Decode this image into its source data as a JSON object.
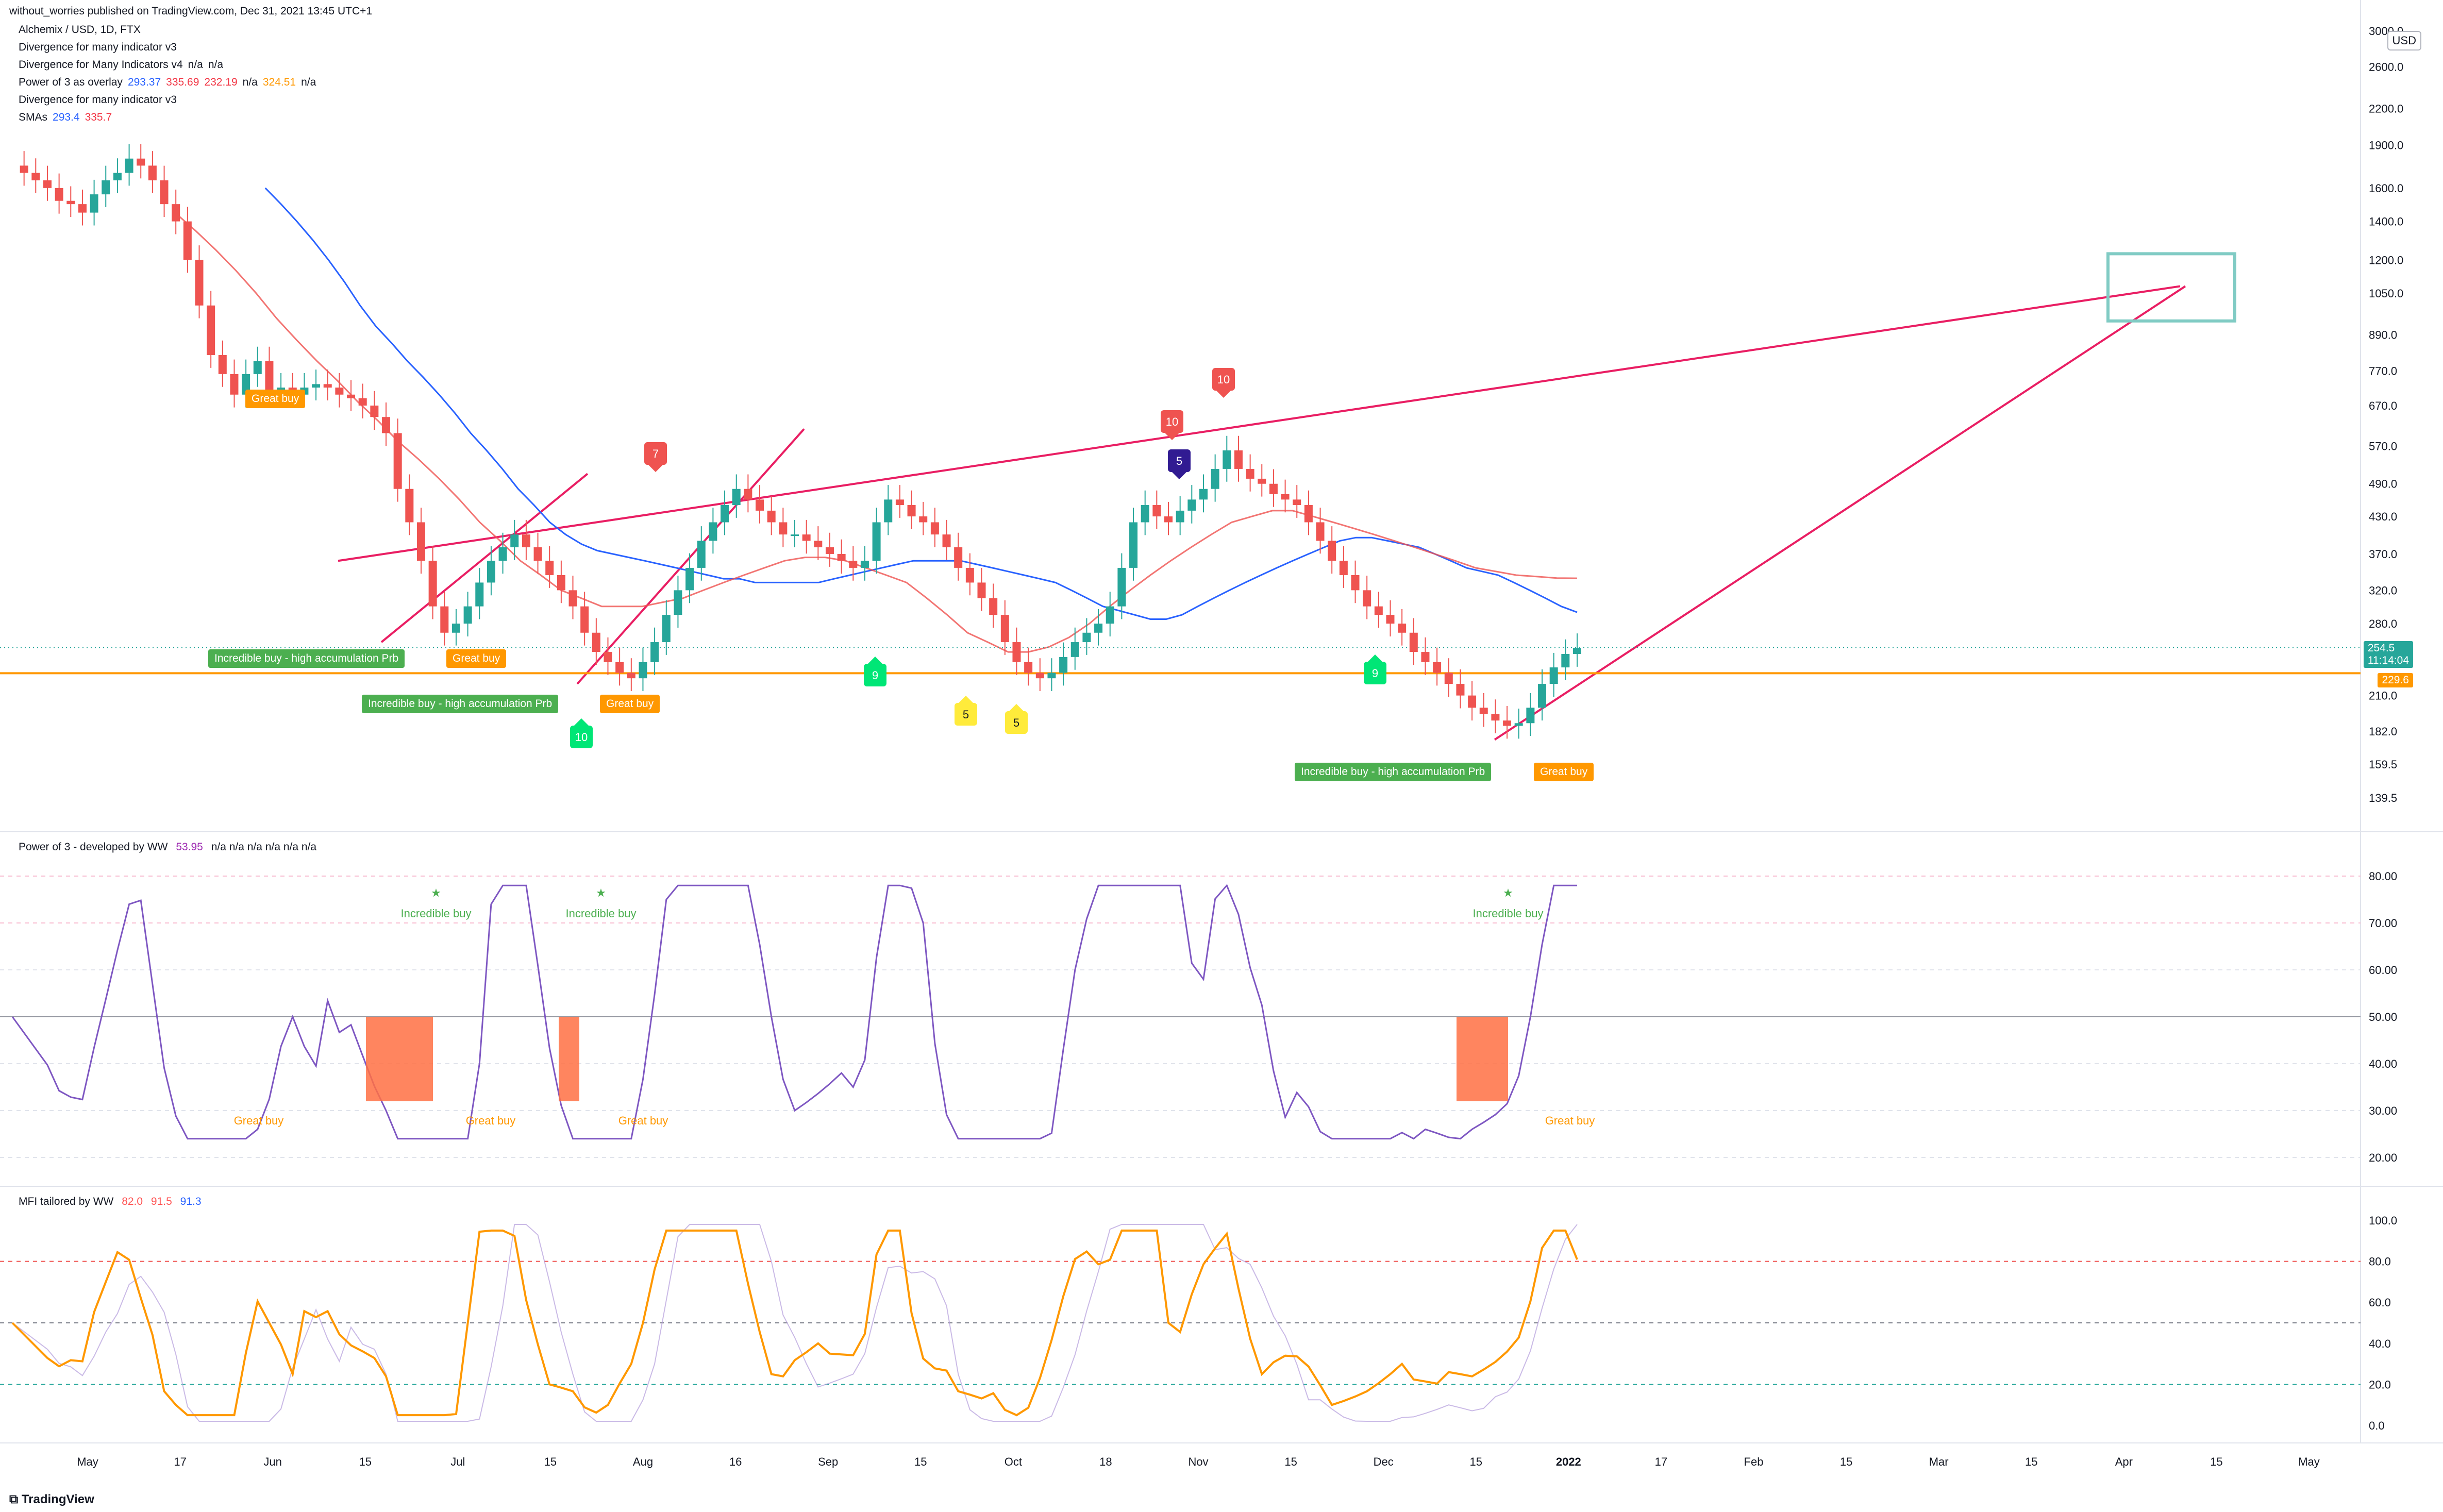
{
  "header": {
    "credit": "without_worries published on TradingView.com, Dec 31, 2021 13:45 UTC+1",
    "symbol": "Alchemix / USD, 1D, FTX",
    "indicators": [
      {
        "name": "Divergence for many indicator v3",
        "values": []
      },
      {
        "name": "Divergence for Many Indicators v4",
        "values": [
          "n/a",
          "n/a"
        ]
      },
      {
        "name": "Power of 3 as overlay",
        "values": [
          "293.37",
          "335.69",
          "232.19",
          "n/a",
          "324.51",
          "n/a"
        ]
      },
      {
        "name": "Divergence for many indicator v3",
        "values": []
      },
      {
        "name": "SMAs",
        "values": [
          "293.4",
          "335.7"
        ]
      }
    ],
    "value_colors": [
      "#2962ff",
      "#f23645",
      "#f23645",
      "#131722",
      "#ff9800",
      "#131722"
    ]
  },
  "currency_box": "USD",
  "price_axis": {
    "ticks": [
      "3000.0",
      "2600.0",
      "2200.0",
      "1900.0",
      "1600.0",
      "1400.0",
      "1200.0",
      "1050.0",
      "890.0",
      "770.0",
      "670.0",
      "570.0",
      "490.0",
      "430.0",
      "370.0",
      "320.0",
      "280.0",
      "210.0",
      "182.0",
      "159.5",
      "139.5"
    ],
    "tick_values": [
      3000,
      2600,
      2200,
      1900,
      1600,
      1400,
      1200,
      1050,
      890,
      770,
      670,
      570,
      490,
      430,
      370,
      320,
      280,
      210,
      182,
      159.5,
      139.5
    ],
    "last_price": "254.5",
    "countdown": "11:14:04",
    "level_price": "229.6"
  },
  "time_axis": {
    "labels": [
      "May",
      "17",
      "Jun",
      "15",
      "Jul",
      "15",
      "Aug",
      "16",
      "Sep",
      "15",
      "Oct",
      "18",
      "Nov",
      "15",
      "Dec",
      "15",
      "2022",
      "17",
      "Feb",
      "15",
      "Mar",
      "15",
      "Apr",
      "15",
      "May"
    ]
  },
  "markers": {
    "sell": [
      "7",
      "10",
      "10",
      "5"
    ],
    "buy": [
      "10",
      "9",
      "5",
      "5",
      "9"
    ]
  },
  "signals": {
    "incredible": "Incredible buy - high accumulation Prb",
    "great": "Great buy"
  },
  "pane2": {
    "title": "Power of 3 - developed by WW",
    "value": "53.95",
    "na": [
      "n/a",
      "n/a",
      "n/a",
      "n/a",
      "n/a",
      "n/a"
    ],
    "ticks": [
      "80.00",
      "70.00",
      "60.00",
      "50.00",
      "40.00",
      "30.00",
      "20.00"
    ],
    "tick_values": [
      80,
      70,
      60,
      50,
      40,
      30,
      20
    ],
    "incredible_label": "Incredible buy",
    "great_label": "Great buy"
  },
  "pane3": {
    "title": "MFI tailored by WW",
    "values": [
      "82.0",
      "91.5",
      "91.3"
    ],
    "value_colors": [
      "#ff5252",
      "#ff5252",
      "#2962ff"
    ],
    "ticks": [
      "100.0",
      "80.0",
      "60.0",
      "40.0",
      "20.0",
      "0.0"
    ],
    "tick_values": [
      100,
      80,
      60,
      40,
      20,
      0
    ]
  },
  "footer": "TradingView",
  "colors": {
    "bull": "#26a69a",
    "bear": "#ef5350",
    "trend": "#e91e63",
    "sma_fast": "#2962ff",
    "sma_slow": "#ef5350",
    "orange": "#ff9800",
    "green_badge": "#4caf50",
    "target_box": "#80cbc4"
  },
  "chart_data": {
    "type": "candlestick",
    "title": "Alchemix / USD, 1D, FTX",
    "scale": "log",
    "closes": [
      1750,
      1700,
      1650,
      1600,
      1520,
      1500,
      1450,
      1560,
      1650,
      1700,
      1800,
      1750,
      1650,
      1500,
      1400,
      1200,
      1000,
      820,
      760,
      700,
      760,
      800,
      700,
      720,
      700,
      720,
      730,
      720,
      700,
      690,
      670,
      640,
      600,
      480,
      420,
      360,
      300,
      270,
      280,
      300,
      330,
      360,
      380,
      400,
      380,
      360,
      340,
      320,
      300,
      270,
      250,
      240,
      230,
      225,
      240,
      260,
      290,
      320,
      350,
      390,
      420,
      450,
      480,
      460,
      440,
      420,
      400,
      400,
      390,
      380,
      370,
      360,
      350,
      360,
      420,
      460,
      450,
      430,
      420,
      400,
      380,
      350,
      330,
      310,
      290,
      260,
      240,
      230,
      225,
      230,
      245,
      260,
      270,
      280,
      300,
      350,
      420,
      450,
      430,
      420,
      440,
      460,
      480,
      520,
      560,
      520,
      500,
      490,
      470,
      460,
      450,
      420,
      390,
      360,
      340,
      320,
      300,
      290,
      280,
      270,
      250,
      240,
      230,
      220,
      210,
      200,
      195,
      190,
      186,
      188,
      200,
      220,
      235,
      248,
      254
    ],
    "sma_fast": [
      null,
      null,
      null,
      null,
      null,
      null,
      null,
      null,
      null,
      null,
      null,
      null,
      null,
      null,
      null,
      null,
      1600,
      1500,
      1400,
      1300,
      1200,
      1100,
      1000,
      920,
      860,
      800,
      750,
      700,
      650,
      600,
      560,
      520,
      480,
      450,
      420,
      400,
      385,
      375,
      370,
      365,
      360,
      355,
      350,
      345,
      340,
      335,
      335,
      330,
      330,
      330,
      330,
      330,
      335,
      340,
      345,
      350,
      355,
      360,
      360,
      360,
      360,
      355,
      350,
      345,
      340,
      335,
      330,
      320,
      310,
      300,
      295,
      290,
      285,
      285,
      290,
      300,
      310,
      320,
      330,
      340,
      350,
      360,
      370,
      380,
      390,
      395,
      395,
      390,
      385,
      380,
      370,
      360,
      350,
      345,
      340,
      330,
      320,
      310,
      300,
      293
    ],
    "sma_slow": [
      null,
      null,
      null,
      null,
      null,
      null,
      null,
      null,
      1450,
      1350,
      1250,
      1150,
      1050,
      950,
      870,
      800,
      740,
      680,
      630,
      580,
      540,
      500,
      460,
      420,
      390,
      360,
      340,
      320,
      310,
      300,
      300,
      300,
      305,
      310,
      320,
      330,
      340,
      350,
      360,
      365,
      365,
      360,
      350,
      340,
      330,
      310,
      290,
      270,
      260,
      250,
      250,
      255,
      265,
      280,
      300,
      320,
      340,
      360,
      380,
      400,
      420,
      430,
      440,
      440,
      430,
      420,
      410,
      400,
      390,
      380,
      370,
      360,
      350,
      345,
      340,
      338,
      336,
      335.7
    ]
  }
}
